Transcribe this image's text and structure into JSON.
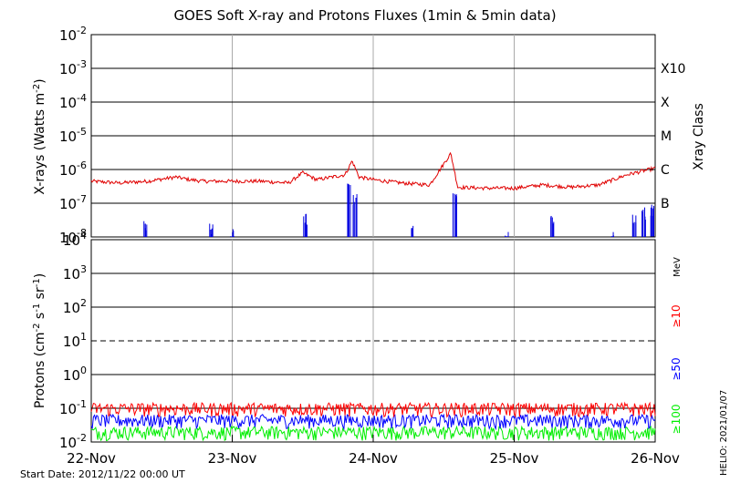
{
  "title": "GOES Soft X-ray and Protons Fluxes   (1min & 5min data)",
  "footer": {
    "start_date": "Start Date: 2012/11/22 00:00 UT",
    "credit": "HELIO: 2021/01/07"
  },
  "colors": {
    "xray_long": "#e00000",
    "xray_short": "#0000e0",
    "p10": "#ff0000",
    "p50": "#0000ff",
    "p100": "#00ee00",
    "grid": "#000000",
    "day_line": "#aaaaaa"
  },
  "chart_data": [
    {
      "type": "line",
      "panel": "xray",
      "ylabel": "X-rays (Watts m^-2)",
      "yscale": "log",
      "ylim": [
        1e-08,
        0.01
      ],
      "ytick_labels": [
        "10^-8",
        "10^-7",
        "10^-6",
        "10^-5",
        "10^-4",
        "10^-3",
        "10^-2"
      ],
      "right_axis_title": "Xray Class",
      "right_labels": [
        {
          "text": "X10",
          "value": 0.001
        },
        {
          "text": "X",
          "value": 0.0001
        },
        {
          "text": "M",
          "value": 1e-05
        },
        {
          "text": "C",
          "value": 1e-06
        },
        {
          "text": "B",
          "value": 1e-07
        }
      ],
      "x_unit": "days from 22-Nov 00:00 UT",
      "series": [
        {
          "color_key": "xray_long",
          "x": [
            0,
            0.2,
            0.4,
            0.6,
            0.7,
            0.8,
            1.0,
            1.2,
            1.4,
            1.5,
            1.6,
            1.8,
            1.85,
            1.9,
            2.0,
            2.2,
            2.4,
            2.55,
            2.6,
            2.8,
            3.0,
            3.2,
            3.4,
            3.6,
            3.8,
            4.0
          ],
          "y": [
            4.5e-07,
            4e-07,
            4.5e-07,
            6e-07,
            5e-07,
            4.5e-07,
            4.5e-07,
            4.5e-07,
            4e-07,
            8e-07,
            5e-07,
            7e-07,
            1.8e-06,
            6e-07,
            5e-07,
            4e-07,
            3.5e-07,
            3e-06,
            3e-07,
            2.8e-07,
            2.8e-07,
            3.5e-07,
            3e-07,
            3.5e-07,
            7e-07,
            1.1e-06
          ]
        },
        {
          "color_key": "xray_short",
          "bursts": [
            {
              "x": 0.38,
              "peak": 3e-08
            },
            {
              "x": 0.85,
              "peak": 2.5e-08
            },
            {
              "x": 1.0,
              "peak": 1.8e-08
            },
            {
              "x": 1.52,
              "peak": 5e-08
            },
            {
              "x": 1.83,
              "peak": 4e-07
            },
            {
              "x": 1.87,
              "peak": 2e-07
            },
            {
              "x": 2.28,
              "peak": 2.2e-08
            },
            {
              "x": 2.58,
              "peak": 2e-07
            },
            {
              "x": 2.95,
              "peak": 1.5e-08
            },
            {
              "x": 3.27,
              "peak": 6e-08
            },
            {
              "x": 3.7,
              "peak": 1.5e-08
            },
            {
              "x": 3.85,
              "peak": 6e-08
            },
            {
              "x": 3.92,
              "peak": 8e-08
            },
            {
              "x": 3.98,
              "peak": 1e-07
            }
          ]
        }
      ]
    },
    {
      "type": "line",
      "panel": "protons",
      "ylabel": "Protons (cm^-2 s^-1 sr^-1)",
      "yscale": "log",
      "ylim": [
        0.01,
        10000
      ],
      "ytick_labels": [
        "10^-2",
        "10^-1",
        "10^0",
        "10^1",
        "10^2",
        "10^3",
        "10^4"
      ],
      "dashed_level": 10,
      "right_unit": "MeV",
      "series": [
        {
          "name": "≥10",
          "color_key": "p10",
          "level": 0.1
        },
        {
          "name": "≥50",
          "color_key": "p50",
          "level": 0.045
        },
        {
          "name": "≥100",
          "color_key": "p100",
          "level": 0.02
        }
      ],
      "x_tick_labels": [
        "22-Nov",
        "23-Nov",
        "24-Nov",
        "25-Nov",
        "26-Nov"
      ],
      "xlim": [
        0,
        4
      ]
    }
  ]
}
